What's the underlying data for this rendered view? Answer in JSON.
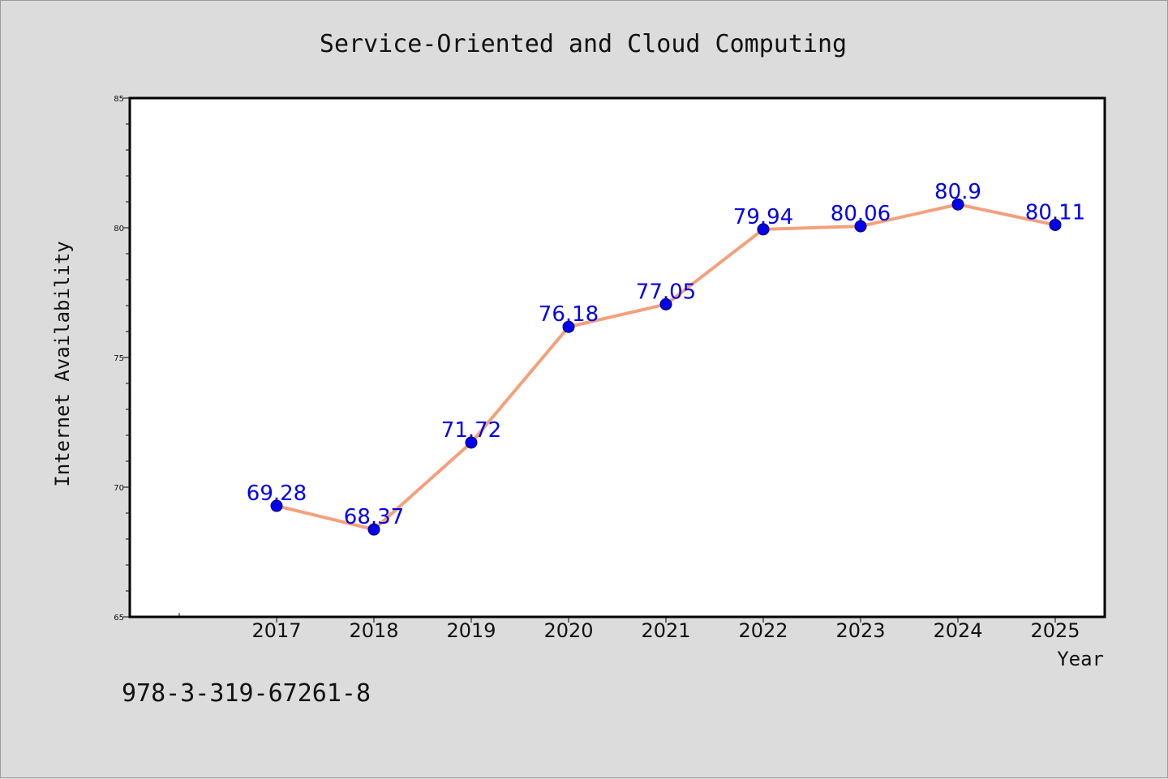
{
  "chart_data": {
    "type": "line",
    "title": "Service-Oriented and Cloud Computing",
    "xlabel": "Year",
    "ylabel": "Internet Availability",
    "categories": [
      "2017",
      "2018",
      "2019",
      "2020",
      "2021",
      "2022",
      "2023",
      "2024",
      "2025"
    ],
    "series": [
      {
        "values": [
          69.28,
          68.37,
          71.72,
          76.18,
          77.05,
          79.94,
          80.06,
          80.9,
          80.11
        ],
        "data_labels": [
          "69.28",
          "68.37",
          "71.72",
          "76.18",
          "77.05",
          "79.94",
          "80.06",
          "80.9",
          "80.11"
        ]
      }
    ],
    "ylim": [
      65,
      85
    ],
    "yticks": [
      "65",
      "70",
      "75",
      "80",
      "85"
    ],
    "grid": false,
    "line_color": "#f4a07c",
    "marker_color": "#0000ee",
    "label_color": "#0000ee",
    "background_color": "#dcdcdc",
    "plot_background_color": "#ffffff"
  },
  "footer": {
    "isbn": "978-3-319-67261-8"
  }
}
